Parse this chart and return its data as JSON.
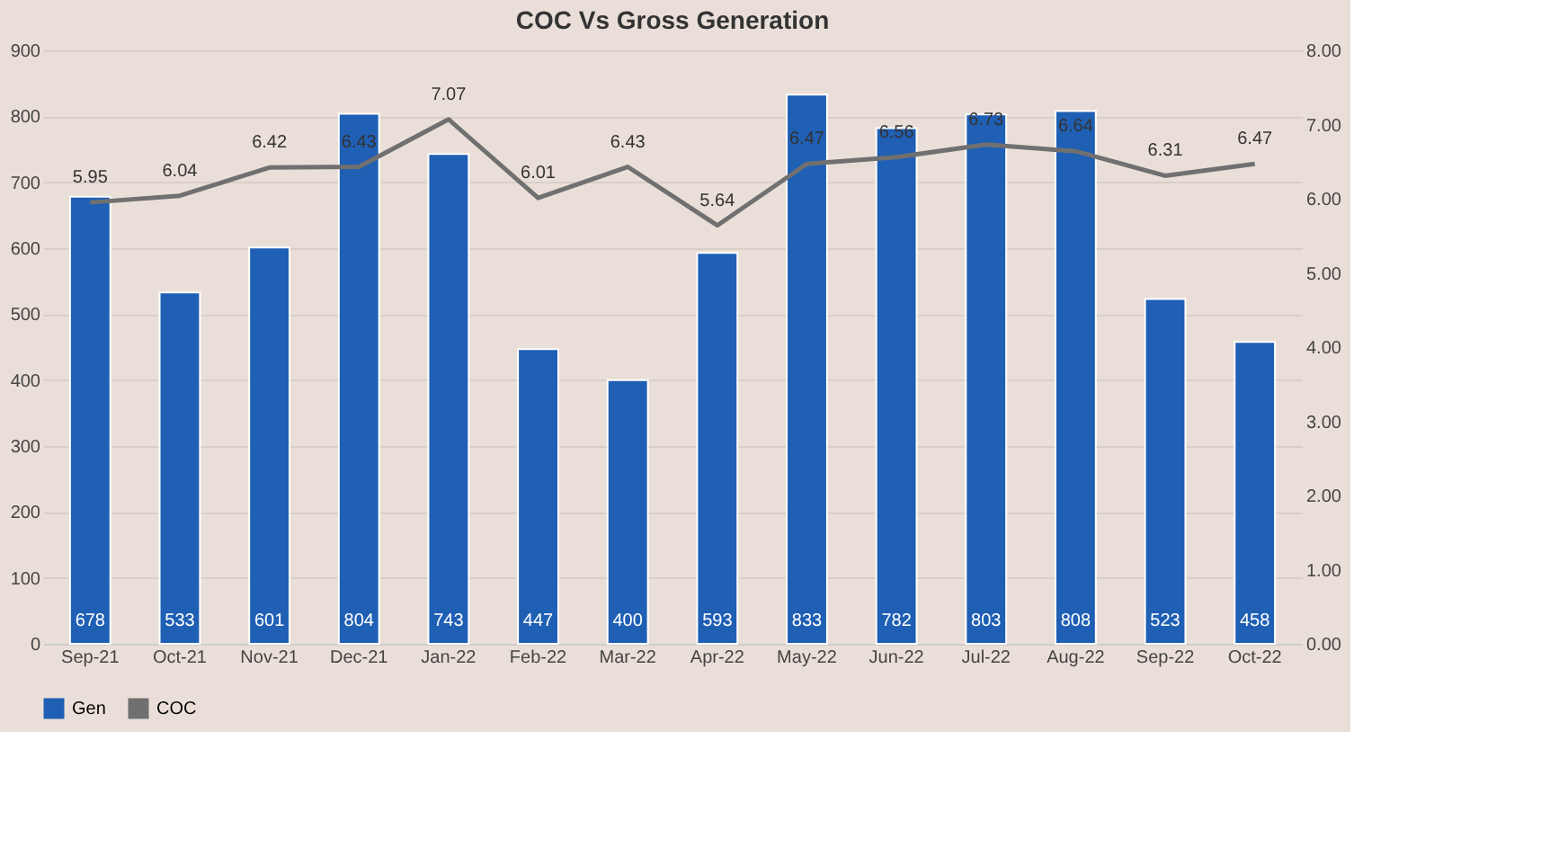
{
  "chart_data": {
    "type": "bar",
    "title": "COC Vs Gross Generation",
    "categories": [
      "Sep-21",
      "Oct-21",
      "Nov-21",
      "Dec-21",
      "Jan-22",
      "Feb-22",
      "Mar-22",
      "Apr-22",
      "May-22",
      "Jun-22",
      "Jul-22",
      "Aug-22",
      "Sep-22",
      "Oct-22"
    ],
    "series": [
      {
        "name": "Gen",
        "color": "#1f5fb4",
        "values": [
          678,
          533,
          601,
          804,
          743,
          447,
          400,
          593,
          833,
          782,
          803,
          808,
          523,
          458
        ]
      },
      {
        "name": "COC",
        "type": "line",
        "axis": "y2",
        "color": "#707070",
        "values": [
          5.95,
          6.04,
          6.42,
          6.43,
          7.07,
          6.01,
          6.43,
          5.64,
          6.47,
          6.56,
          6.73,
          6.64,
          6.31,
          6.47
        ]
      }
    ],
    "ylim": [
      0,
      900
    ],
    "yticks": [
      0,
      100,
      200,
      300,
      400,
      500,
      600,
      700,
      800,
      900
    ],
    "y2lim": [
      0,
      8
    ],
    "y2ticks": [
      {
        "value": 0,
        "label": "0.00"
      },
      {
        "value": 1,
        "label": "1.00"
      },
      {
        "value": 2,
        "label": "2.00"
      },
      {
        "value": 3,
        "label": "3.00"
      },
      {
        "value": 4,
        "label": "4.00"
      },
      {
        "value": 5,
        "label": "5.00"
      },
      {
        "value": 6,
        "label": "6.00"
      },
      {
        "value": 7,
        "label": "7.00"
      },
      {
        "value": 8,
        "label": "8.00"
      }
    ],
    "data_labels": true,
    "grid": "y",
    "legend": "bottom",
    "marker": "none",
    "line_style": "solid"
  }
}
